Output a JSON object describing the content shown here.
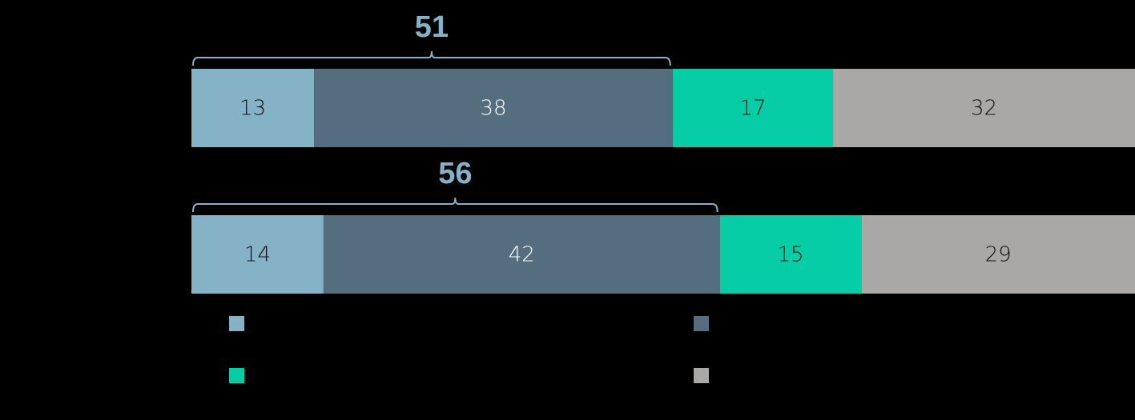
{
  "chart_data": {
    "type": "stacked-bar-horizontal",
    "categories": [
      null,
      null
    ],
    "series": [
      {
        "color": "#85b2c6",
        "values": [
          13,
          14
        ]
      },
      {
        "color": "#546e7f",
        "values": [
          38,
          42
        ]
      },
      {
        "color": "#06cda5",
        "values": [
          17,
          15
        ]
      },
      {
        "color": "#a9a8a6",
        "values": [
          32,
          29
        ]
      }
    ],
    "xlim": [
      0,
      100
    ],
    "brace_totals": [
      51,
      56
    ],
    "brace_color": "#85b2c6"
  }
}
